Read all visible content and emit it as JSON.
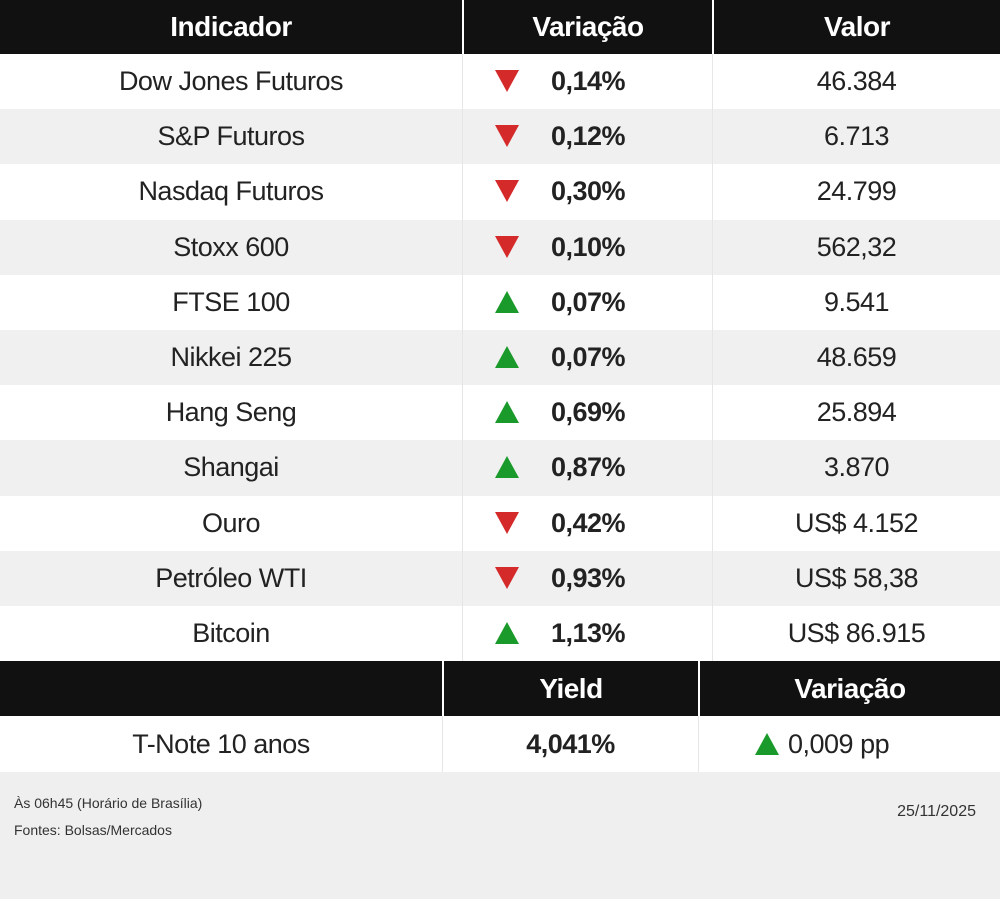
{
  "table": {
    "header": [
      "Indicador",
      "Variação",
      "Valor"
    ],
    "rows": [
      [
        "Dow Jones Futuros",
        "0,14%",
        "46.384"
      ],
      [
        "S&P Futuros",
        "0,12%",
        "6.713"
      ],
      [
        "Nasdaq Futuros",
        "0,30%",
        "24.799"
      ],
      [
        "Stoxx 600",
        "0,10%",
        "562,32"
      ],
      [
        "FTSE 100",
        "0,07%",
        "9.541"
      ],
      [
        "Nikkei 225",
        "0,07%",
        "48.659"
      ],
      [
        "Hang Seng",
        "0,69%",
        "25.894"
      ],
      [
        "Shangai",
        "0,87%",
        "3.870"
      ],
      [
        "Ouro",
        "0,42%",
        "US$ 4.152"
      ],
      [
        "Petróleo WTI",
        "0,93%",
        "US$ 58,38"
      ],
      [
        "Bitcoin",
        "1,13%",
        "US$ 86.915"
      ]
    ],
    "directions": [
      "down",
      "down",
      "down",
      "down",
      "up",
      "up",
      "up",
      "up",
      "down",
      "down",
      "up"
    ]
  },
  "yield_table": {
    "header": [
      "Yield",
      "Variação"
    ],
    "rows": [
      [
        "T-Note 10 anos",
        "4,041%",
        "0,009 pp"
      ]
    ],
    "directions": [
      "up"
    ]
  },
  "footer": {
    "time": "Às 06h45 (Horário de Brasília)",
    "sources": "Fontes: Bolsas/Mercados",
    "date": "25/11/2025"
  }
}
